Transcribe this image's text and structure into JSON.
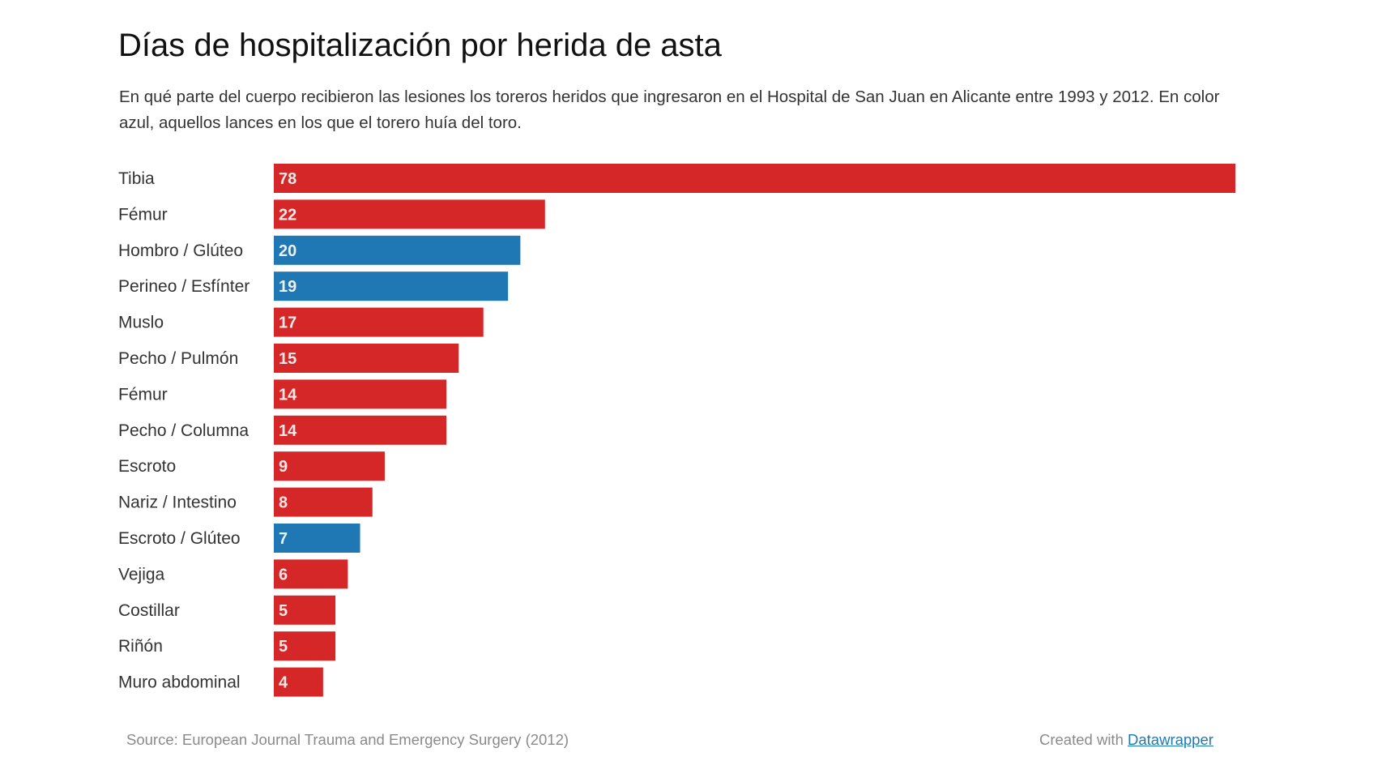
{
  "chart_data": {
    "type": "bar",
    "orientation": "horizontal",
    "title": "Días de hospitalización por herida de asta",
    "subtitle": "En qué parte del cuerpo recibieron las lesiones los toreros heridos que ingresaron en el Hospital de San Juan en Alicante entre 1993 y 2012. En color azul, aquellos lances en los que el torero huía del toro.",
    "xlabel": "",
    "ylabel": "",
    "xlim": [
      0,
      78
    ],
    "grid": false,
    "legend": "none",
    "categories": [
      "Tibia",
      "Fémur",
      "Hombro / Glúteo",
      "Perineo / Esfínter",
      "Muslo",
      "Pecho / Pulmón",
      "Fémur",
      "Pecho / Columna",
      "Escroto",
      "Nariz / Intestino",
      "Escroto / Glúteo",
      "Vejiga",
      "Costillar",
      "Riñón",
      "Muro abdominal"
    ],
    "values": [
      78,
      22,
      20,
      19,
      17,
      15,
      14,
      14,
      9,
      8,
      7,
      6,
      5,
      5,
      4
    ],
    "fleeing": [
      false,
      false,
      true,
      true,
      false,
      false,
      false,
      false,
      false,
      false,
      true,
      false,
      false,
      false,
      false
    ],
    "colors": {
      "default": "#d62728",
      "fleeing": "#1f77b4"
    },
    "source": "Source: European Journal Trauma and Emergency Surgery (2012)"
  },
  "footer": {
    "source": "Source: European Journal Trauma and Emergency Surgery (2012)",
    "credit_prefix": "Created with ",
    "credit_link": "Datawrapper"
  }
}
